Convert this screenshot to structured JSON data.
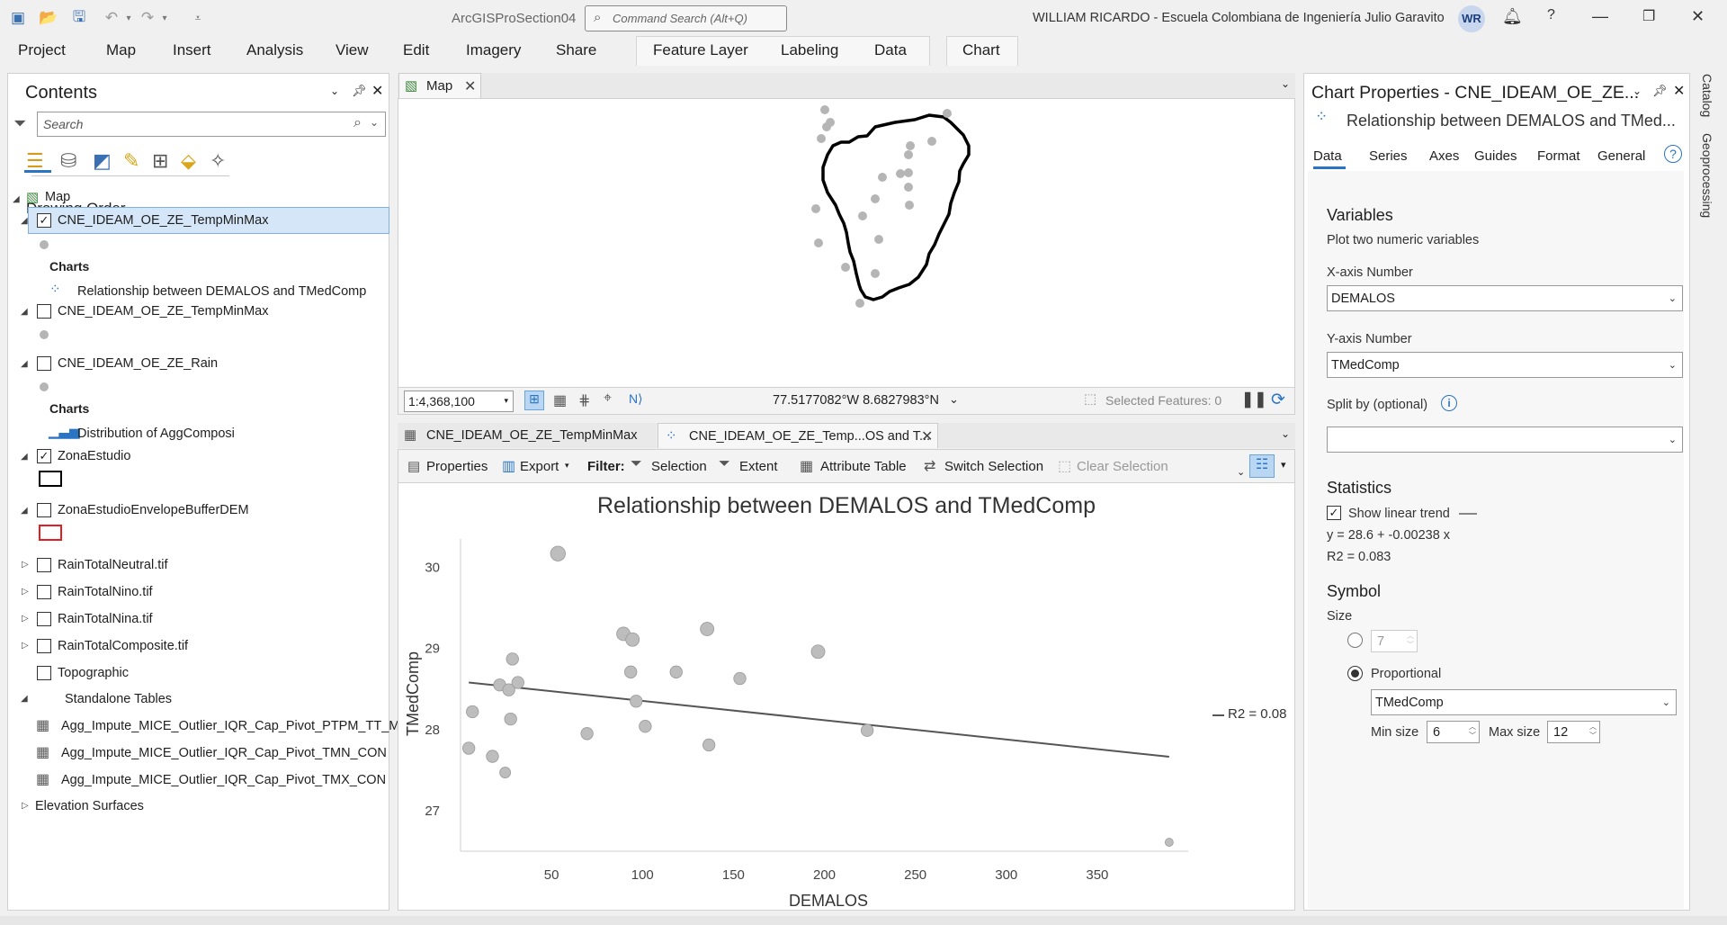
{
  "app": {
    "project": "ArcGISProSection04",
    "search_placeholder": "Command Search (Alt+Q)",
    "user": "WILLIAM RICARDO  - Escuela Colombiana de Ingeniería Julio Garavito",
    "initials": "WR"
  },
  "menu": [
    "Project",
    "Map",
    "Insert",
    "Analysis",
    "View",
    "Edit",
    "Imagery",
    "Share"
  ],
  "ctx_menu": {
    "feature_layer": "Feature Layer",
    "labeling": "Labeling",
    "data": "Data",
    "chart": "Chart"
  },
  "contents": {
    "title": "Contents",
    "search_placeholder": "Search",
    "drawing_order": "Drawing Order",
    "map": "Map",
    "layer1": "CNE_IDEAM_OE_ZE_TempMinMax",
    "charts": "Charts",
    "chart1": "Relationship between DEMALOS and TMedComp",
    "layer2": "CNE_IDEAM_OE_ZE_TempMinMax",
    "layer3": "CNE_IDEAM_OE_ZE_Rain",
    "chart2": "Distribution of AggComposi",
    "layer4": "ZonaEstudio",
    "layer5": "ZonaEstudioEnvelopeBufferDEM",
    "layer6": "RainTotalNeutral.tif",
    "layer7": "RainTotalNino.tif",
    "layer8": "RainTotalNina.tif",
    "layer9": "RainTotalComposite.tif",
    "layer10": "Topographic",
    "standalone": "Standalone Tables",
    "table1": "Agg_Impute_MICE_Outlier_IQR_Cap_Pivot_PTPM_TT_M",
    "table2": "Agg_Impute_MICE_Outlier_IQR_Cap_Pivot_TMN_CON",
    "table3": "Agg_Impute_MICE_Outlier_IQR_Cap_Pivot_TMX_CON",
    "elevation": "Elevation Surfaces"
  },
  "mapview": {
    "tab": "Map",
    "scale": "1:4,368,100",
    "coords": "77.5177082°W 8.6827983°N",
    "selected": "Selected Features: 0"
  },
  "chartview": {
    "tab1": "CNE_IDEAM_OE_ZE_TempMinMax",
    "tab2": "CNE_IDEAM_OE_ZE_Temp...OS and T...",
    "properties": "Properties",
    "export": "Export",
    "filter": "Filter:",
    "selection": "Selection",
    "extent": "Extent",
    "attr_table": "Attribute Table",
    "switch_sel": "Switch Selection",
    "clear_sel": "Clear Selection",
    "r2_legend": "R2 = 0.08"
  },
  "chart_data": {
    "type": "scatter",
    "title": "Relationship between DEMALOS and TMedComp",
    "xlabel": "DEMALOS",
    "ylabel": "TMedComp",
    "xticks": [
      50,
      100,
      150,
      200,
      250,
      300,
      350
    ],
    "yticks": [
      27,
      28,
      29,
      30
    ],
    "xlim": [
      0,
      400
    ],
    "ylim": [
      26.5,
      30.35
    ],
    "points": [
      [
        8,
        27.77
      ],
      [
        10,
        28.22
      ],
      [
        21,
        27.67
      ],
      [
        25,
        28.55
      ],
      [
        28,
        27.47
      ],
      [
        30,
        28.49
      ],
      [
        31,
        28.13
      ],
      [
        32,
        28.87
      ],
      [
        35,
        28.58
      ],
      [
        57,
        30.17
      ],
      [
        73,
        27.95
      ],
      [
        93,
        29.18
      ],
      [
        97,
        28.71
      ],
      [
        98,
        29.11
      ],
      [
        100,
        28.35
      ],
      [
        105,
        28.04
      ],
      [
        122,
        28.71
      ],
      [
        139,
        29.24
      ],
      [
        140,
        27.81
      ],
      [
        157,
        28.63
      ],
      [
        200,
        28.96
      ],
      [
        227,
        27.99
      ],
      [
        393,
        26.61
      ]
    ],
    "sizes": [
      9,
      9,
      9,
      9,
      8,
      9,
      9,
      9,
      9,
      11,
      9,
      10,
      9,
      10,
      9,
      9,
      9,
      10,
      9,
      9,
      10,
      9,
      6
    ],
    "trend": {
      "intercept": 28.6,
      "slope": -0.00238,
      "x_range": [
        8,
        393
      ]
    }
  },
  "chartprops": {
    "title": "Chart Properties - CNE_IDEAM_OE_ZE...",
    "subtitle": "Relationship between DEMALOS and TMed...",
    "tabs": [
      "Data",
      "Series",
      "Axes",
      "Guides",
      "Format",
      "General"
    ],
    "variables": "Variables",
    "plot_two": "Plot two numeric variables",
    "xaxis_label": "X-axis Number",
    "xaxis_value": "DEMALOS",
    "yaxis_label": "Y-axis Number",
    "yaxis_value": "TMedComp",
    "split_label": "Split by (optional)",
    "statistics": "Statistics",
    "show_trend": "Show linear trend",
    "equation": "y = 28.6 + -0.00238 x",
    "r2": "R2 = 0.083",
    "symbol": "Symbol",
    "size": "Size",
    "size_value": "7",
    "proportional": "Proportional",
    "prop_field": "TMedComp",
    "min_size_label": "Min size",
    "min_size": "6",
    "max_size_label": "Max size",
    "max_size": "12"
  },
  "sidetabs": {
    "catalog": "Catalog",
    "geoprocessing": "Geoprocessing"
  }
}
